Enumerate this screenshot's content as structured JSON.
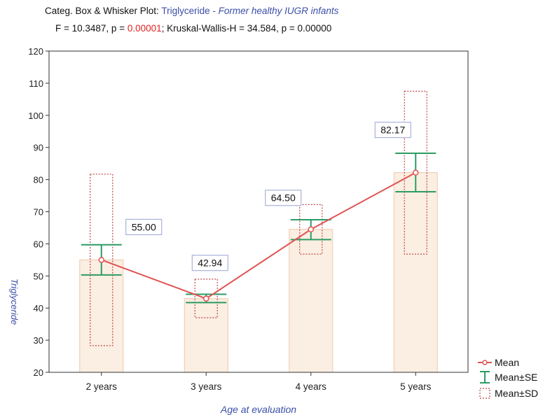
{
  "header": {
    "prefix": "Categ. Box & Whisker Plot: ",
    "variable": "Triglyceride",
    "separator": " - ",
    "description": "Former healthy IUGR infants",
    "stats_part1": "F = 10.3487, p = ",
    "stats_p_red": "0.00001",
    "stats_part2": "; Kruskal-Wallis-H = 34.584, p = 0.00000"
  },
  "chart_data": {
    "type": "bar",
    "categories": [
      "2 years",
      "3 years",
      "4 years",
      "5 years"
    ],
    "series": [
      {
        "name": "Mean",
        "values": [
          55.0,
          42.94,
          64.5,
          82.17
        ]
      }
    ],
    "se_ranges": [
      [
        50.3,
        59.7
      ],
      [
        41.7,
        44.3
      ],
      [
        61.3,
        67.5
      ],
      [
        76.2,
        88.2
      ]
    ],
    "sd_ranges": [
      [
        28.3,
        81.7
      ],
      [
        37.0,
        49.0
      ],
      [
        56.8,
        72.2
      ],
      [
        56.8,
        107.5
      ]
    ],
    "data_labels": [
      "55.00",
      "42.94",
      "64.50",
      "82.17"
    ],
    "xlabel": "Age at evaluation",
    "ylabel": "Triglyceride",
    "ylim": [
      20,
      120
    ],
    "yticks": [
      20,
      30,
      40,
      50,
      60,
      70,
      80,
      90,
      100,
      110,
      120
    ],
    "grid": false,
    "legend_placement": "bottom-right",
    "legend": [
      "Mean",
      "Mean±SE",
      "Mean±SD"
    ],
    "colors": {
      "bar_fill": "#fbeee2",
      "bar_stroke": "#efc9aa",
      "mean_line": "#e05454",
      "se": "#2c9c63",
      "sd": "#c04848",
      "axis_title": "#3b4fa8",
      "label_box_border": "#9aa3d2"
    }
  }
}
